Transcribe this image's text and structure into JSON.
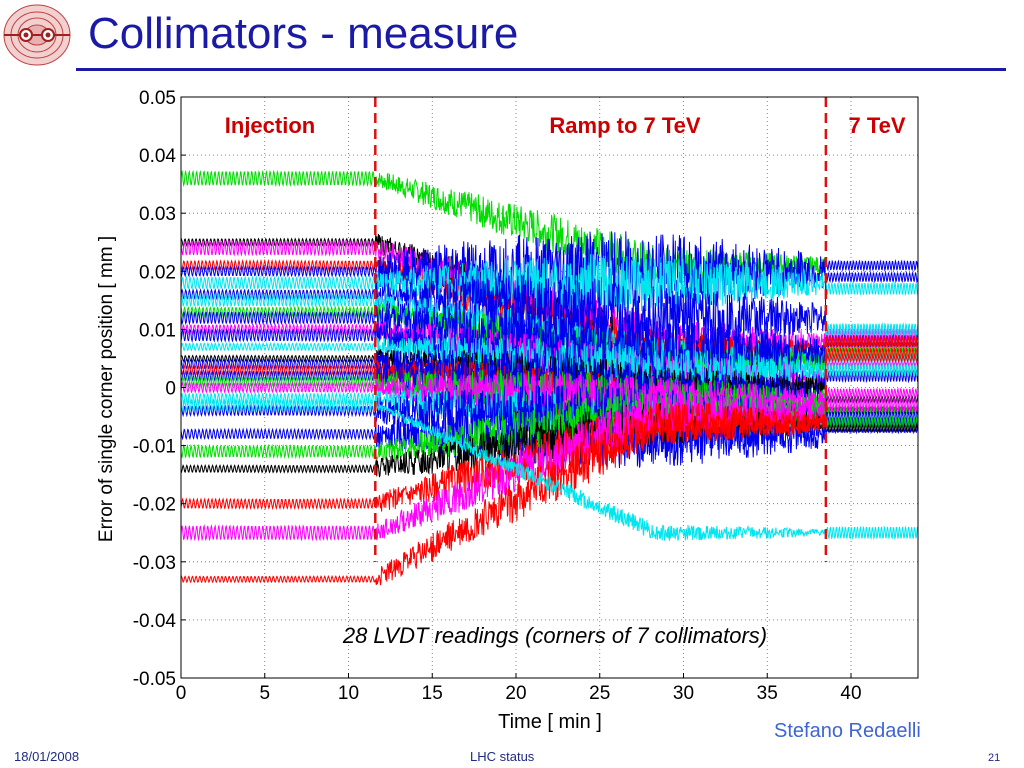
{
  "slide": {
    "title": "Collimators - measure",
    "author": "Stefano Redaelli",
    "footer_date": "18/01/2008",
    "footer_center": "LHC status",
    "page_number": "21"
  },
  "colors": {
    "title": "#1a1aa6",
    "phase_label": "#cc0000",
    "marker_line": "#dd1111",
    "footer": "#1f2a80",
    "author": "#3e64d6"
  },
  "chart_data": {
    "type": "line",
    "xlabel": "Time [ min ]",
    "ylabel": "Error of single corner position [ mm ]",
    "xlim": [
      0,
      44
    ],
    "ylim": [
      -0.05,
      0.05
    ],
    "grid": true,
    "x_ticks": [
      0,
      5,
      10,
      15,
      20,
      25,
      30,
      35,
      40
    ],
    "x_tick_labels": [
      "0",
      "5",
      "10",
      "15",
      "20",
      "25",
      "30",
      "35",
      "40"
    ],
    "y_ticks": [
      0.05,
      0.04,
      0.03,
      0.02,
      0.01,
      0,
      -0.01,
      -0.02,
      -0.03,
      -0.04,
      -0.05
    ],
    "y_tick_labels": [
      "0.05",
      "0.04",
      "0.03",
      "0.02",
      "0.01",
      "0",
      "-0.01",
      "-0.02",
      "-0.03",
      "-0.04",
      "-0.05"
    ],
    "phase_markers": [
      11.6,
      38.5
    ],
    "phase_labels": [
      "Injection",
      "Ramp to 7 TeV",
      "7 TeV"
    ],
    "annotation": "28 LVDT readings (corners of 7 collimators)",
    "series": [
      {
        "color": "#00dd00",
        "injection": 0.036,
        "ramp_end": 0.021,
        "flat": 0.003,
        "noise_inj": 0.0012,
        "noise_ramp": 0.0035
      },
      {
        "color": "#000000",
        "injection": 0.025,
        "ramp_end": 0.006,
        "flat": -0.002,
        "noise_inj": 0.0006,
        "noise_ramp": 0.004
      },
      {
        "color": "#ff00ff",
        "injection": 0.024,
        "ramp_end": 0.008,
        "flat": 0.009,
        "noise_inj": 0.0012,
        "noise_ramp": 0.004
      },
      {
        "color": "#ff0000",
        "injection": 0.021,
        "ramp_end": 0.006,
        "flat": 0.007,
        "noise_inj": 0.0008,
        "noise_ramp": 0.004
      },
      {
        "color": "#0000ee",
        "injection": 0.02,
        "ramp_end": 0.02,
        "flat": 0.021,
        "noise_inj": 0.0008,
        "noise_ramp": 0.007
      },
      {
        "color": "#00e5ee",
        "injection": 0.018,
        "ramp_end": 0.018,
        "flat": 0.017,
        "noise_inj": 0.001,
        "noise_ramp": 0.005
      },
      {
        "color": "#0000ee",
        "injection": 0.016,
        "ramp_end": 0.012,
        "flat": 0.019,
        "noise_inj": 0.0008,
        "noise_ramp": 0.006
      },
      {
        "color": "#00e5ee",
        "injection": 0.015,
        "ramp_end": 0.005,
        "flat": 0.01,
        "noise_inj": 0.001,
        "noise_ramp": 0.004
      },
      {
        "color": "#00dd00",
        "injection": 0.013,
        "ramp_end": 0.004,
        "flat": 0.006,
        "noise_inj": 0.0008,
        "noise_ramp": 0.004
      },
      {
        "color": "#0000ee",
        "injection": 0.012,
        "ramp_end": 0.006,
        "flat": 0.008,
        "noise_inj": 0.001,
        "noise_ramp": 0.006
      },
      {
        "color": "#ff00ff",
        "injection": 0.01,
        "ramp_end": 0.002,
        "flat": 0.004,
        "noise_inj": 0.0008,
        "noise_ramp": 0.004
      },
      {
        "color": "#0000ee",
        "injection": 0.009,
        "ramp_end": 0.0,
        "flat": 0.002,
        "noise_inj": 0.001,
        "noise_ramp": 0.006
      },
      {
        "color": "#00e5ee",
        "injection": 0.007,
        "ramp_end": 0.003,
        "flat": 0.005,
        "noise_inj": 0.0006,
        "noise_ramp": 0.004
      },
      {
        "color": "#000000",
        "injection": 0.005,
        "ramp_end": 0.0,
        "flat": -0.004,
        "noise_inj": 0.0005,
        "noise_ramp": 0.004
      },
      {
        "color": "#0000ee",
        "injection": 0.004,
        "ramp_end": -0.002,
        "flat": -0.006,
        "noise_inj": 0.0008,
        "noise_ramp": 0.006
      },
      {
        "color": "#ff0000",
        "injection": 0.003,
        "ramp_end": -0.004,
        "flat": 0.008,
        "noise_inj": 0.0008,
        "noise_ramp": 0.005
      },
      {
        "color": "#0000ee",
        "injection": 0.002,
        "ramp_end": -0.004,
        "flat": -0.006,
        "noise_inj": 0.0008,
        "noise_ramp": 0.006
      },
      {
        "color": "#00dd00",
        "injection": 0.001,
        "ramp_end": -0.002,
        "flat": -0.004,
        "noise_inj": 0.0008,
        "noise_ramp": 0.004
      },
      {
        "color": "#ff00ff",
        "injection": 0.0,
        "ramp_end": -0.002,
        "flat": -0.001,
        "noise_inj": 0.0008,
        "noise_ramp": 0.004
      },
      {
        "color": "#00e5ee",
        "injection": -0.002,
        "ramp_end": -0.006,
        "flat": 0.003,
        "noise_inj": 0.001,
        "noise_ramp": 0.004
      },
      {
        "color": "#0000ee",
        "injection": -0.004,
        "ramp_end": -0.006,
        "flat": -0.007,
        "noise_inj": 0.0008,
        "noise_ramp": 0.006
      },
      {
        "color": "#0000ee",
        "injection": -0.008,
        "ramp_end": -0.008,
        "flat": -0.005,
        "noise_inj": 0.0008,
        "noise_ramp": 0.006
      },
      {
        "color": "#00dd00",
        "injection": -0.011,
        "ramp_end": -0.004,
        "flat": -0.006,
        "noise_inj": 0.001,
        "noise_ramp": 0.004
      },
      {
        "color": "#000000",
        "injection": -0.014,
        "ramp_end": -0.006,
        "flat": -0.007,
        "noise_inj": 0.0006,
        "noise_ramp": 0.004
      },
      {
        "color": "#ff0000",
        "injection": -0.02,
        "ramp_end": -0.006,
        "flat": 0.006,
        "noise_inj": 0.0008,
        "noise_ramp": 0.004
      },
      {
        "color": "#ff00ff",
        "injection": -0.025,
        "ramp_end": -0.004,
        "flat": -0.003,
        "noise_inj": 0.0012,
        "noise_ramp": 0.004
      },
      {
        "color": "#ff0000",
        "injection": -0.033,
        "ramp_end": -0.006,
        "flat": 0.005,
        "noise_inj": 0.0005,
        "noise_ramp": 0.004
      },
      {
        "color": "#00e5ee",
        "injection": -0.003,
        "ramp_end": -0.025,
        "flat": -0.025,
        "noise_inj": 0.001,
        "noise_ramp": 0.0015
      }
    ]
  }
}
